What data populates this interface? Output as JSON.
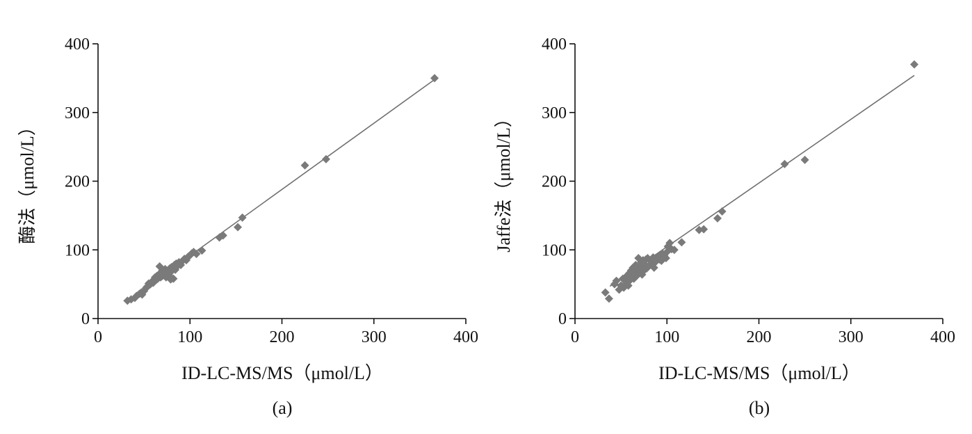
{
  "chart_data": [
    {
      "type": "scatter",
      "caption": "(a)",
      "xlabel": "ID-LC-MS/MS（μmol/L）",
      "ylabel": "酶法（μmol/L）",
      "xlim": [
        0,
        400
      ],
      "ylim": [
        0,
        400
      ],
      "xticks": [
        "0",
        "100",
        "200",
        "300",
        "400"
      ],
      "yticks": [
        "0",
        "100",
        "200",
        "300",
        "400"
      ],
      "grid": false,
      "marker_color": "#7a7a7a",
      "line_color": "#707070",
      "fit_line": {
        "x": [
          32,
          366
        ],
        "y": [
          26,
          348
        ]
      },
      "points": [
        [
          32,
          26
        ],
        [
          36,
          28
        ],
        [
          40,
          30
        ],
        [
          42,
          33
        ],
        [
          45,
          36
        ],
        [
          47,
          38
        ],
        [
          48,
          35
        ],
        [
          50,
          40
        ],
        [
          52,
          44
        ],
        [
          53,
          46
        ],
        [
          55,
          48
        ],
        [
          55,
          51
        ],
        [
          57,
          50
        ],
        [
          58,
          53
        ],
        [
          60,
          55
        ],
        [
          60,
          52
        ],
        [
          61,
          57
        ],
        [
          62,
          60
        ],
        [
          63,
          56
        ],
        [
          64,
          62
        ],
        [
          65,
          58
        ],
        [
          66,
          64
        ],
        [
          67,
          76
        ],
        [
          68,
          60
        ],
        [
          69,
          66
        ],
        [
          70,
          62
        ],
        [
          70,
          70
        ],
        [
          71,
          68
        ],
        [
          72,
          64
        ],
        [
          73,
          72
        ],
        [
          74,
          60
        ],
        [
          75,
          67
        ],
        [
          76,
          70
        ],
        [
          77,
          63
        ],
        [
          78,
          73
        ],
        [
          79,
          57
        ],
        [
          80,
          75
        ],
        [
          80,
          69
        ],
        [
          82,
          58
        ],
        [
          83,
          78
        ],
        [
          84,
          71
        ],
        [
          85,
          80
        ],
        [
          86,
          76
        ],
        [
          88,
          82
        ],
        [
          90,
          78
        ],
        [
          92,
          84
        ],
        [
          94,
          87
        ],
        [
          96,
          85
        ],
        [
          98,
          90
        ],
        [
          100,
          92
        ],
        [
          102,
          95
        ],
        [
          104,
          97
        ],
        [
          107,
          94
        ],
        [
          113,
          99
        ],
        [
          132,
          118
        ],
        [
          136,
          121
        ],
        [
          152,
          133
        ],
        [
          157,
          147
        ],
        [
          225,
          223
        ],
        [
          248,
          232
        ],
        [
          366,
          350
        ]
      ]
    },
    {
      "type": "scatter",
      "caption": "(b)",
      "xlabel": "ID-LC-MS/MS（μmol/L）",
      "ylabel": "Jaffe法（μmol/L）",
      "xlim": [
        0,
        400
      ],
      "ylim": [
        0,
        400
      ],
      "xticks": [
        "0",
        "100",
        "200",
        "300",
        "400"
      ],
      "yticks": [
        "0",
        "100",
        "200",
        "300",
        "400"
      ],
      "grid": false,
      "marker_color": "#7a7a7a",
      "line_color": "#707070",
      "fit_line": {
        "x": [
          38,
          369
        ],
        "y": [
          47,
          354
        ]
      },
      "points": [
        [
          33,
          38
        ],
        [
          37,
          29
        ],
        [
          43,
          50
        ],
        [
          45,
          55
        ],
        [
          48,
          42
        ],
        [
          50,
          48
        ],
        [
          52,
          58
        ],
        [
          53,
          45
        ],
        [
          55,
          60
        ],
        [
          56,
          52
        ],
        [
          57,
          63
        ],
        [
          58,
          48
        ],
        [
          59,
          66
        ],
        [
          60,
          56
        ],
        [
          61,
          70
        ],
        [
          62,
          60
        ],
        [
          63,
          74
        ],
        [
          64,
          58
        ],
        [
          65,
          68
        ],
        [
          66,
          78
        ],
        [
          67,
          62
        ],
        [
          68,
          72
        ],
        [
          69,
          88
        ],
        [
          70,
          66
        ],
        [
          71,
          76
        ],
        [
          72,
          82
        ],
        [
          73,
          64
        ],
        [
          74,
          85
        ],
        [
          75,
          70
        ],
        [
          76,
          79
        ],
        [
          77,
          86
        ],
        [
          78,
          73
        ],
        [
          79,
          88
        ],
        [
          80,
          76
        ],
        [
          82,
          84
        ],
        [
          84,
          80
        ],
        [
          85,
          89
        ],
        [
          86,
          74
        ],
        [
          88,
          83
        ],
        [
          90,
          90
        ],
        [
          92,
          86
        ],
        [
          94,
          84
        ],
        [
          95,
          95
        ],
        [
          97,
          92
        ],
        [
          99,
          88
        ],
        [
          100,
          97
        ],
        [
          101,
          105
        ],
        [
          103,
          110
        ],
        [
          105,
          101
        ],
        [
          108,
          100
        ],
        [
          116,
          111
        ],
        [
          135,
          129
        ],
        [
          140,
          130
        ],
        [
          155,
          146
        ],
        [
          160,
          156
        ],
        [
          228,
          225
        ],
        [
          250,
          231
        ],
        [
          369,
          370
        ]
      ]
    }
  ]
}
